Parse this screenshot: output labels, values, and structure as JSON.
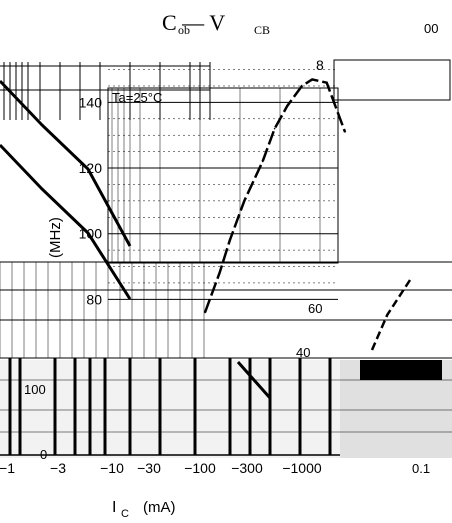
{
  "chart_data": [
    {
      "type": "line",
      "title": "C   — V",
      "title_sub_1": "ob",
      "title_sub_2": "CB",
      "xlabel": "I",
      "xlabel_sub": "C",
      "xlabel_unit": "(mA)",
      "ylabel": "(MHz)",
      "annotation": "Ta=25°C",
      "x_scale": "log",
      "x_ticks": [
        -1,
        -3,
        -10,
        -30,
        -100,
        -300,
        -1000
      ],
      "x_tick_labels": [
        "−1",
        "−3",
        "−10",
        "−30",
        "−100",
        "−300",
        "−1000"
      ],
      "y_ticks": [
        80,
        100,
        120,
        140
      ],
      "y_tick_labels": [
        "80",
        "100",
        "120",
        "140"
      ],
      "ylim": [
        75,
        152
      ],
      "grid": true,
      "series": [
        {
          "x": [
            -10,
            -15,
            -20,
            -30,
            -50,
            -70,
            -100,
            -150,
            -200,
            -300,
            -500
          ],
          "y": [
            76,
            88,
            98,
            110,
            122,
            132,
            139,
            145,
            147,
            146,
            131
          ]
        }
      ]
    },
    {
      "type": "line",
      "ylabel": "",
      "corner_tick_label": "8",
      "corner_right_label": "00",
      "y_tick_labels": [
        "60",
        "40"
      ],
      "x_tick_labels": [
        "0.1"
      ],
      "series": [
        {
          "x": [
            0.5,
            0.7,
            1.0
          ],
          "y": [
            42,
            52,
            62
          ]
        }
      ]
    },
    {
      "type": "line",
      "y_tick_labels": [
        "100",
        "0"
      ],
      "series": [
        {
          "x": [
            -1,
            -3,
            -10,
            -30
          ],
          "y": [
            95,
            75,
            55,
            20
          ]
        },
        {
          "x": [
            -1,
            -3,
            -10,
            -30
          ],
          "y": [
            75,
            55,
            35,
            5
          ]
        }
      ]
    }
  ]
}
